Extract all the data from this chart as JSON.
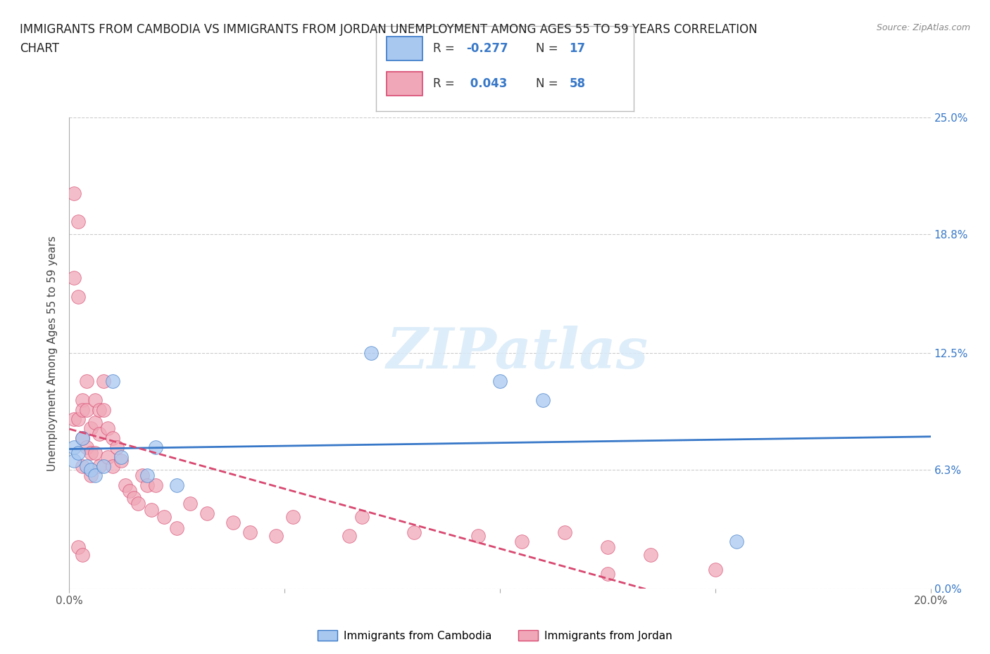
{
  "title_line1": "IMMIGRANTS FROM CAMBODIA VS IMMIGRANTS FROM JORDAN UNEMPLOYMENT AMONG AGES 55 TO 59 YEARS CORRELATION",
  "title_line2": "CHART",
  "source": "Source: ZipAtlas.com",
  "ylabel": "Unemployment Among Ages 55 to 59 years",
  "watermark": "ZIPatlas",
  "xlim": [
    0.0,
    0.2
  ],
  "ylim": [
    0.0,
    0.25
  ],
  "yticks": [
    0.0,
    0.063,
    0.125,
    0.188,
    0.25
  ],
  "ytick_labels_right": [
    "0.0%",
    "6.3%",
    "12.5%",
    "18.8%",
    "25.0%"
  ],
  "legend_labels": [
    "Immigrants from Cambodia",
    "Immigrants from Jordan"
  ],
  "r_cambodia": -0.277,
  "n_cambodia": 17,
  "r_jordan": 0.043,
  "n_jordan": 58,
  "color_cambodia": "#a8c8f0",
  "color_jordan": "#f0a8b8",
  "line_color_cambodia": "#3878c8",
  "line_color_jordan": "#d84870",
  "background_color": "#ffffff",
  "grid_color": "#cccccc",
  "title_fontsize": 12,
  "axis_label_fontsize": 11,
  "tick_fontsize": 11,
  "cambodia_x": [
    0.001,
    0.001,
    0.002,
    0.003,
    0.004,
    0.005,
    0.006,
    0.008,
    0.01,
    0.012,
    0.018,
    0.02,
    0.025,
    0.07,
    0.1,
    0.11,
    0.155
  ],
  "cambodia_y": [
    0.068,
    0.075,
    0.072,
    0.08,
    0.065,
    0.063,
    0.06,
    0.065,
    0.11,
    0.07,
    0.06,
    0.075,
    0.055,
    0.125,
    0.11,
    0.1,
    0.025
  ],
  "jordan_x": [
    0.001,
    0.001,
    0.001,
    0.002,
    0.002,
    0.002,
    0.003,
    0.003,
    0.003,
    0.003,
    0.004,
    0.004,
    0.004,
    0.005,
    0.005,
    0.005,
    0.006,
    0.006,
    0.006,
    0.007,
    0.007,
    0.007,
    0.008,
    0.008,
    0.009,
    0.009,
    0.01,
    0.01,
    0.011,
    0.012,
    0.013,
    0.014,
    0.015,
    0.016,
    0.017,
    0.018,
    0.019,
    0.02,
    0.022,
    0.025,
    0.028,
    0.032,
    0.038,
    0.042,
    0.048,
    0.052,
    0.065,
    0.068,
    0.08,
    0.095,
    0.105,
    0.115,
    0.125,
    0.135,
    0.15,
    0.002,
    0.003,
    0.125
  ],
  "jordan_y": [
    0.21,
    0.165,
    0.09,
    0.195,
    0.155,
    0.09,
    0.1,
    0.095,
    0.08,
    0.065,
    0.11,
    0.095,
    0.075,
    0.085,
    0.072,
    0.06,
    0.1,
    0.088,
    0.072,
    0.095,
    0.082,
    0.065,
    0.11,
    0.095,
    0.085,
    0.07,
    0.08,
    0.065,
    0.075,
    0.068,
    0.055,
    0.052,
    0.048,
    0.045,
    0.06,
    0.055,
    0.042,
    0.055,
    0.038,
    0.032,
    0.045,
    0.04,
    0.035,
    0.03,
    0.028,
    0.038,
    0.028,
    0.038,
    0.03,
    0.028,
    0.025,
    0.03,
    0.022,
    0.018,
    0.01,
    0.022,
    0.018,
    0.008
  ]
}
